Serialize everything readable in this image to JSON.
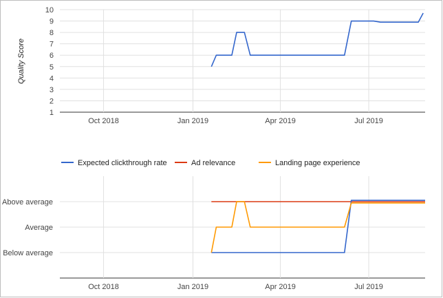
{
  "chart_data": [
    {
      "type": "line",
      "title": "",
      "xlabel": "",
      "ylabel": "Quality Score",
      "ylim": [
        1,
        10
      ],
      "yticks": [
        1,
        2,
        3,
        4,
        5,
        6,
        7,
        8,
        9,
        10
      ],
      "xticks": [
        {
          "label": "Oct 2018",
          "date": "2018-10-01"
        },
        {
          "label": "Jan 2019",
          "date": "2019-01-01"
        },
        {
          "label": "Apr 2019",
          "date": "2019-04-01"
        },
        {
          "label": "Jul 2019",
          "date": "2019-07-01"
        }
      ],
      "xlim": [
        "2018-08-17",
        "2019-08-28"
      ],
      "grid": true,
      "series": [
        {
          "color": "#3366cc",
          "x": [
            "2019-01-20",
            "2019-01-25",
            "2019-02-10",
            "2019-02-15",
            "2019-02-23",
            "2019-03-01",
            "2019-06-06",
            "2019-06-13",
            "2019-07-06",
            "2019-07-13",
            "2019-08-21",
            "2019-08-26"
          ],
          "y": [
            5,
            6,
            6,
            8,
            8,
            6,
            6,
            9,
            9,
            8.9,
            8.9,
            9.7
          ]
        }
      ]
    },
    {
      "type": "line",
      "title": "",
      "xlabel": "",
      "ylabel": "",
      "ylim": [
        0,
        4
      ],
      "yticks": [
        {
          "value": 1,
          "label": "Below average"
        },
        {
          "value": 2,
          "label": "Average"
        },
        {
          "value": 3,
          "label": "Above average"
        }
      ],
      "xticks": [
        {
          "label": "Oct 2018",
          "date": "2018-10-01"
        },
        {
          "label": "Jan 2019",
          "date": "2019-01-01"
        },
        {
          "label": "Apr 2019",
          "date": "2019-04-01"
        },
        {
          "label": "Jul 2019",
          "date": "2019-07-01"
        }
      ],
      "xlim": [
        "2018-08-17",
        "2019-08-28"
      ],
      "grid": true,
      "legend_position": "top",
      "series": [
        {
          "name": "Expected clickthrough rate",
          "color": "#3366cc",
          "x": [
            "2019-01-20",
            "2019-01-22",
            "2019-06-06",
            "2019-06-13",
            "2019-08-28"
          ],
          "y": [
            1,
            1,
            1,
            3.05,
            3.05
          ]
        },
        {
          "name": "Ad relevance",
          "color": "#dc3912",
          "x": [
            "2019-01-20",
            "2019-08-28"
          ],
          "y": [
            3,
            3
          ]
        },
        {
          "name": "Landing page experience",
          "color": "#ff9900",
          "x": [
            "2019-01-20",
            "2019-01-25",
            "2019-02-10",
            "2019-02-15",
            "2019-02-23",
            "2019-03-01",
            "2019-06-06",
            "2019-06-13",
            "2019-08-28"
          ],
          "y": [
            1,
            2,
            2,
            3,
            3,
            2,
            2,
            2.95,
            2.95
          ]
        }
      ]
    }
  ]
}
